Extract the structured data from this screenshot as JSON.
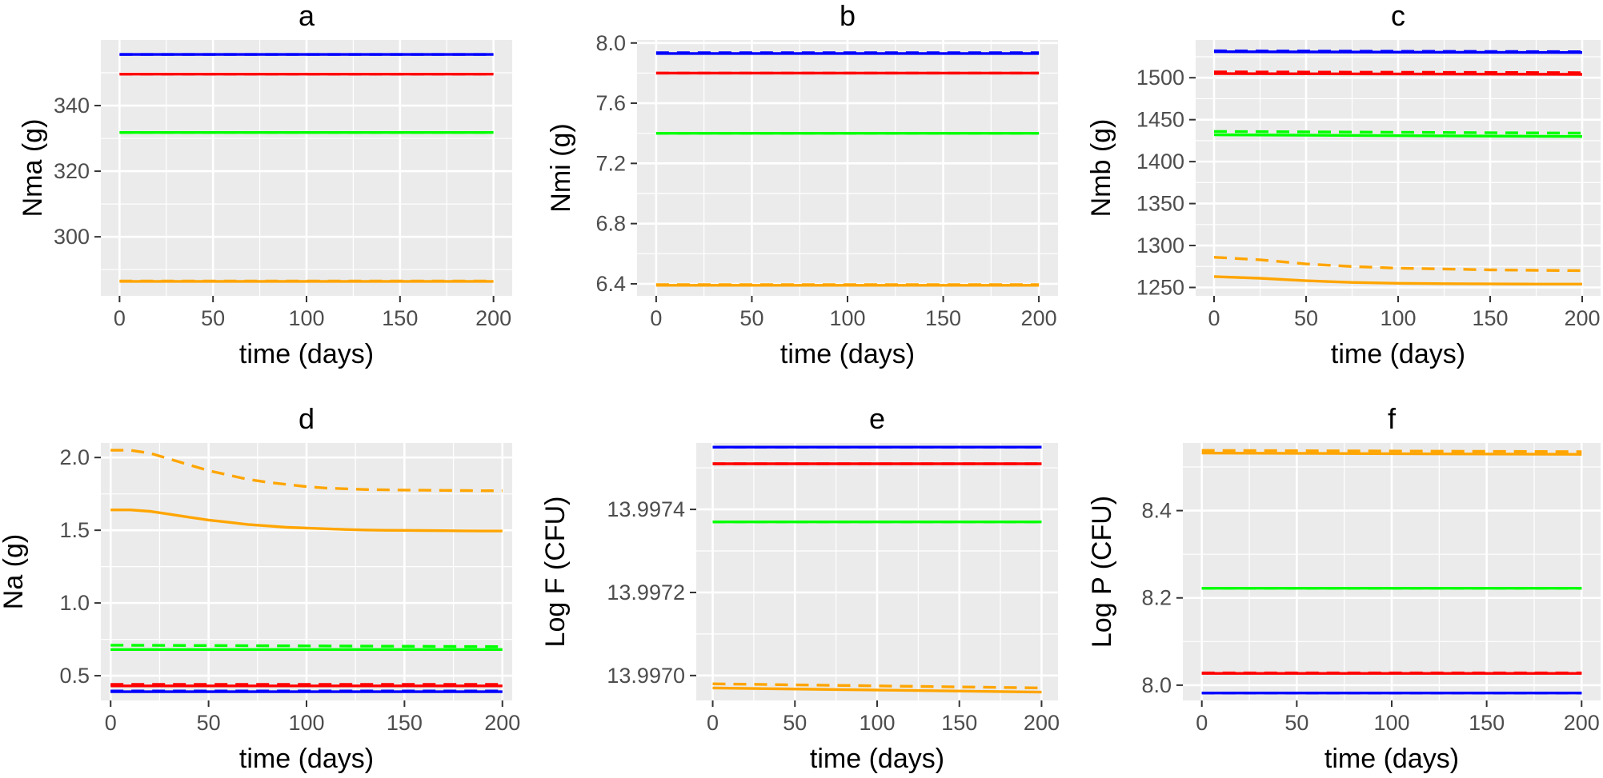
{
  "chart_data": [
    {
      "type": "line",
      "title": "a",
      "xlabel": "time (days)",
      "ylabel": "Nma (g)",
      "xlim": [
        -10,
        210
      ],
      "ylim": [
        282,
        360
      ],
      "xticks": [
        0,
        50,
        100,
        150,
        200
      ],
      "yticks": [
        300,
        320,
        340
      ],
      "yticklabels": [
        "300",
        "320",
        "340"
      ],
      "grid": true,
      "series": [
        {
          "color": "#0000ff",
          "style": "solid",
          "x": [
            0,
            200
          ],
          "y": [
            355.6,
            355.6
          ]
        },
        {
          "color": "#0000ff",
          "style": "dashed",
          "x": [
            0,
            200
          ],
          "y": [
            355.6,
            355.6
          ]
        },
        {
          "color": "#ff0000",
          "style": "solid",
          "x": [
            0,
            200
          ],
          "y": [
            349.6,
            349.6
          ]
        },
        {
          "color": "#ff0000",
          "style": "dashed",
          "x": [
            0,
            200
          ],
          "y": [
            349.6,
            349.6
          ]
        },
        {
          "color": "#00ff00",
          "style": "solid",
          "x": [
            0,
            200
          ],
          "y": [
            331.8,
            331.8
          ]
        },
        {
          "color": "#00ff00",
          "style": "dashed",
          "x": [
            0,
            200
          ],
          "y": [
            331.8,
            331.8
          ]
        },
        {
          "color": "#ffa500",
          "style": "solid",
          "x": [
            0,
            200
          ],
          "y": [
            286.4,
            286.4
          ]
        },
        {
          "color": "#ffa500",
          "style": "dashed",
          "x": [
            0,
            200
          ],
          "y": [
            286.5,
            286.5
          ]
        }
      ]
    },
    {
      "type": "line",
      "title": "b",
      "xlabel": "time (days)",
      "ylabel": "Nmi (g)",
      "xlim": [
        -10,
        210
      ],
      "ylim": [
        6.32,
        8.02
      ],
      "xticks": [
        0,
        50,
        100,
        150,
        200
      ],
      "yticks": [
        6.4,
        6.8,
        7.2,
        7.6,
        8.0
      ],
      "yticklabels": [
        "6.4",
        "6.8",
        "7.2",
        "7.6",
        "8.0"
      ],
      "grid": true,
      "series": [
        {
          "color": "#0000ff",
          "style": "solid",
          "x": [
            0,
            200
          ],
          "y": [
            7.93,
            7.93
          ]
        },
        {
          "color": "#0000ff",
          "style": "dashed",
          "x": [
            0,
            200
          ],
          "y": [
            7.935,
            7.935
          ]
        },
        {
          "color": "#ff0000",
          "style": "solid",
          "x": [
            0,
            200
          ],
          "y": [
            7.8,
            7.8
          ]
        },
        {
          "color": "#ff0000",
          "style": "dashed",
          "x": [
            0,
            200
          ],
          "y": [
            7.8,
            7.8
          ]
        },
        {
          "color": "#00ff00",
          "style": "solid",
          "x": [
            0,
            200
          ],
          "y": [
            7.4,
            7.4
          ]
        },
        {
          "color": "#00ff00",
          "style": "dashed",
          "x": [
            0,
            200
          ],
          "y": [
            7.4,
            7.4
          ]
        },
        {
          "color": "#ffa500",
          "style": "solid",
          "x": [
            0,
            200
          ],
          "y": [
            6.39,
            6.39
          ]
        },
        {
          "color": "#ffa500",
          "style": "dashed",
          "x": [
            0,
            200
          ],
          "y": [
            6.395,
            6.395
          ]
        }
      ]
    },
    {
      "type": "line",
      "title": "c",
      "xlabel": "time (days)",
      "ylabel": "Nmb (g)",
      "xlim": [
        -10,
        210
      ],
      "ylim": [
        1240,
        1545
      ],
      "xticks": [
        0,
        50,
        100,
        150,
        200
      ],
      "yticks": [
        1250,
        1300,
        1350,
        1400,
        1450,
        1500
      ],
      "yticklabels": [
        "1250",
        "1300",
        "1350",
        "1400",
        "1450",
        "1500"
      ],
      "grid": true,
      "series": [
        {
          "color": "#0000ff",
          "style": "solid",
          "x": [
            0,
            200
          ],
          "y": [
            1531,
            1530
          ]
        },
        {
          "color": "#0000ff",
          "style": "dashed",
          "x": [
            0,
            200
          ],
          "y": [
            1532,
            1531
          ]
        },
        {
          "color": "#ff0000",
          "style": "solid",
          "x": [
            0,
            200
          ],
          "y": [
            1505,
            1504
          ]
        },
        {
          "color": "#ff0000",
          "style": "dashed",
          "x": [
            0,
            200
          ],
          "y": [
            1507,
            1506
          ]
        },
        {
          "color": "#00ff00",
          "style": "solid",
          "x": [
            0,
            200
          ],
          "y": [
            1432,
            1430
          ]
        },
        {
          "color": "#00ff00",
          "style": "dashed",
          "x": [
            0,
            200
          ],
          "y": [
            1436,
            1434
          ]
        },
        {
          "color": "#ffa500",
          "style": "solid",
          "x": [
            0,
            25,
            50,
            75,
            100,
            125,
            150,
            175,
            200
          ],
          "y": [
            1263,
            1261,
            1258,
            1256,
            1255,
            1254.5,
            1254.2,
            1254,
            1254
          ]
        },
        {
          "color": "#ffa500",
          "style": "dashed",
          "x": [
            0,
            25,
            50,
            75,
            100,
            125,
            150,
            175,
            200
          ],
          "y": [
            1286,
            1283,
            1278,
            1275,
            1273,
            1272,
            1271,
            1270.5,
            1270
          ]
        }
      ]
    },
    {
      "type": "line",
      "title": "d",
      "xlabel": "time (days)",
      "ylabel": "Na (g)",
      "xlim": [
        -5,
        205
      ],
      "ylim": [
        0.33,
        2.1
      ],
      "xticks": [
        0,
        50,
        100,
        150,
        200
      ],
      "yticks": [
        0.5,
        1.0,
        1.5,
        2.0
      ],
      "yticklabels": [
        "0.5",
        "1.0",
        "1.5",
        "2.0"
      ],
      "grid": true,
      "series": [
        {
          "color": "#0000ff",
          "style": "solid",
          "x": [
            0,
            200
          ],
          "y": [
            0.39,
            0.39
          ]
        },
        {
          "color": "#0000ff",
          "style": "dashed",
          "x": [
            0,
            200
          ],
          "y": [
            0.395,
            0.395
          ]
        },
        {
          "color": "#ff0000",
          "style": "solid",
          "x": [
            0,
            200
          ],
          "y": [
            0.43,
            0.43
          ]
        },
        {
          "color": "#ff0000",
          "style": "dashed",
          "x": [
            0,
            200
          ],
          "y": [
            0.44,
            0.44
          ]
        },
        {
          "color": "#00ff00",
          "style": "solid",
          "x": [
            0,
            200
          ],
          "y": [
            0.68,
            0.68
          ]
        },
        {
          "color": "#00ff00",
          "style": "dashed",
          "x": [
            0,
            200
          ],
          "y": [
            0.71,
            0.7
          ]
        },
        {
          "color": "#ffa500",
          "style": "solid",
          "x": [
            0,
            10,
            20,
            30,
            40,
            50,
            60,
            70,
            80,
            90,
            100,
            110,
            120,
            130,
            140,
            150,
            160,
            170,
            180,
            190,
            200
          ],
          "y": [
            1.64,
            1.64,
            1.63,
            1.61,
            1.59,
            1.57,
            1.555,
            1.54,
            1.53,
            1.52,
            1.515,
            1.51,
            1.505,
            1.502,
            1.5,
            1.499,
            1.498,
            1.497,
            1.496,
            1.495,
            1.495
          ]
        },
        {
          "color": "#ffa500",
          "style": "dashed",
          "x": [
            0,
            10,
            20,
            30,
            40,
            50,
            60,
            70,
            80,
            90,
            100,
            110,
            120,
            130,
            140,
            150,
            160,
            170,
            180,
            190,
            200
          ],
          "y": [
            2.05,
            2.05,
            2.03,
            1.99,
            1.95,
            1.91,
            1.88,
            1.85,
            1.83,
            1.815,
            1.8,
            1.79,
            1.785,
            1.78,
            1.778,
            1.776,
            1.775,
            1.774,
            1.773,
            1.772,
            1.772
          ]
        }
      ]
    },
    {
      "type": "line",
      "title": "e",
      "xlabel": "time (days)",
      "ylabel": "Log F (CFU)",
      "xlim": [
        -10,
        210
      ],
      "ylim": [
        13.99694,
        13.99756
      ],
      "xticks": [
        0,
        50,
        100,
        150,
        200
      ],
      "yticks": [
        13.997,
        13.9972,
        13.9974
      ],
      "yticklabels": [
        "13.9970",
        "13.9972",
        "13.9974"
      ],
      "grid": true,
      "series": [
        {
          "color": "#0000ff",
          "style": "solid",
          "x": [
            0,
            200
          ],
          "y": [
            13.99755,
            13.99755
          ]
        },
        {
          "color": "#0000ff",
          "style": "dashed",
          "x": [
            0,
            200
          ],
          "y": [
            13.99755,
            13.99755
          ]
        },
        {
          "color": "#ff0000",
          "style": "solid",
          "x": [
            0,
            200
          ],
          "y": [
            13.99751,
            13.99751
          ]
        },
        {
          "color": "#ff0000",
          "style": "dashed",
          "x": [
            0,
            200
          ],
          "y": [
            13.99751,
            13.99751
          ]
        },
        {
          "color": "#00ff00",
          "style": "solid",
          "x": [
            0,
            200
          ],
          "y": [
            13.99737,
            13.99737
          ]
        },
        {
          "color": "#00ff00",
          "style": "dashed",
          "x": [
            0,
            200
          ],
          "y": [
            13.99737,
            13.99737
          ]
        },
        {
          "color": "#ffa500",
          "style": "solid",
          "x": [
            0,
            200
          ],
          "y": [
            13.99697,
            13.99696
          ]
        },
        {
          "color": "#ffa500",
          "style": "dashed",
          "x": [
            0,
            200
          ],
          "y": [
            13.99698,
            13.99697
          ]
        }
      ]
    },
    {
      "type": "line",
      "title": "f",
      "xlabel": "time (days)",
      "ylabel": "Log P (CFU)",
      "xlim": [
        -10,
        210
      ],
      "ylim": [
        7.965,
        8.555
      ],
      "xticks": [
        0,
        50,
        100,
        150,
        200
      ],
      "yticks": [
        8.0,
        8.2,
        8.4
      ],
      "yticklabels": [
        "8.0",
        "8.2",
        "8.4"
      ],
      "grid": true,
      "series": [
        {
          "color": "#0000ff",
          "style": "solid",
          "x": [
            0,
            200
          ],
          "y": [
            7.982,
            7.982
          ]
        },
        {
          "color": "#0000ff",
          "style": "dashed",
          "x": [
            0,
            200
          ],
          "y": [
            7.982,
            7.982
          ]
        },
        {
          "color": "#ff0000",
          "style": "solid",
          "x": [
            0,
            200
          ],
          "y": [
            8.027,
            8.027
          ]
        },
        {
          "color": "#ff0000",
          "style": "dashed",
          "x": [
            0,
            200
          ],
          "y": [
            8.028,
            8.028
          ]
        },
        {
          "color": "#00ff00",
          "style": "solid",
          "x": [
            0,
            200
          ],
          "y": [
            8.222,
            8.222
          ]
        },
        {
          "color": "#00ff00",
          "style": "dashed",
          "x": [
            0,
            200
          ],
          "y": [
            8.222,
            8.222
          ]
        },
        {
          "color": "#ffa500",
          "style": "solid",
          "x": [
            0,
            200
          ],
          "y": [
            8.532,
            8.529
          ]
        },
        {
          "color": "#ffa500",
          "style": "dashed",
          "x": [
            0,
            200
          ],
          "y": [
            8.538,
            8.535
          ]
        }
      ]
    }
  ]
}
